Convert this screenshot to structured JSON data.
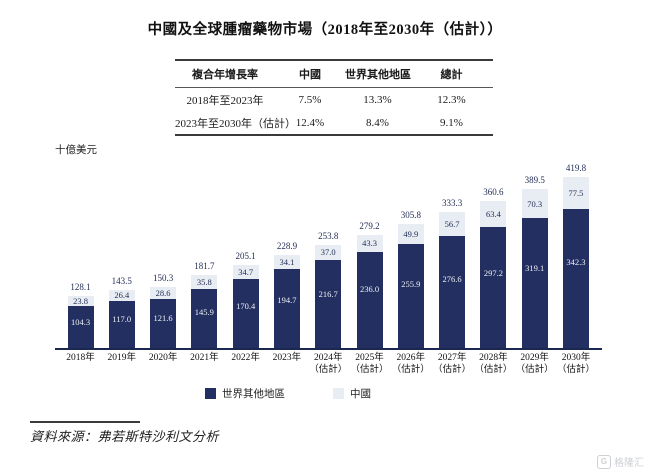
{
  "title": "中國及全球腫瘤藥物市場（2018年至2030年（估計））",
  "cagr_table": {
    "headers": [
      "複合年增長率",
      "中國",
      "世界其他地區",
      "總計"
    ],
    "rows": [
      {
        "label": "2018年至2023年",
        "values": [
          "7.5%",
          "13.3%",
          "12.3%"
        ]
      },
      {
        "label": "2023年至2030年（估計）",
        "values": [
          "12.4%",
          "8.4%",
          "9.1%"
        ]
      }
    ]
  },
  "y_axis_label": "十億美元",
  "chart_data": {
    "type": "bar",
    "stacked": true,
    "unit": "十億美元",
    "categories": [
      {
        "year": "2018年",
        "note": ""
      },
      {
        "year": "2019年",
        "note": ""
      },
      {
        "year": "2020年",
        "note": ""
      },
      {
        "year": "2021年",
        "note": ""
      },
      {
        "year": "2022年",
        "note": ""
      },
      {
        "year": "2023年",
        "note": ""
      },
      {
        "year": "2024年",
        "note": "（估計）"
      },
      {
        "year": "2025年",
        "note": "（估計）"
      },
      {
        "year": "2026年",
        "note": "（估計）"
      },
      {
        "year": "2027年",
        "note": "（估計）"
      },
      {
        "year": "2028年",
        "note": "（估計）"
      },
      {
        "year": "2029年",
        "note": "（估計）"
      },
      {
        "year": "2030年",
        "note": "（估計）"
      }
    ],
    "series": [
      {
        "name": "世界其他地區",
        "color": "#232F60",
        "values": [
          104.3,
          117.0,
          121.6,
          145.9,
          170.4,
          194.7,
          216.7,
          236.0,
          255.9,
          276.6,
          297.2,
          319.1,
          342.3
        ]
      },
      {
        "name": "中國",
        "color": "#E8EDF4",
        "values": [
          23.8,
          26.4,
          28.6,
          35.8,
          34.7,
          34.1,
          37.0,
          43.3,
          49.9,
          56.7,
          63.4,
          70.3,
          77.5
        ]
      }
    ],
    "totals": [
      128.1,
      143.5,
      150.3,
      181.7,
      205.1,
      228.9,
      253.8,
      279.2,
      305.8,
      333.3,
      360.6,
      389.5,
      419.8
    ],
    "ylim": [
      0,
      420
    ],
    "grid": false,
    "legend_position": "bottom"
  },
  "legend": [
    {
      "label": "世界其他地區",
      "color": "#232F60"
    },
    {
      "label": "中國",
      "color": "#E8EDF4"
    }
  ],
  "source": "資料來源：弗若斯特沙利文分析",
  "watermark": {
    "logo": "G",
    "text": "格隆汇"
  },
  "colors": {
    "bar_dark": "#232F60",
    "bar_light": "#E8EDF4",
    "axis": "#1B2750",
    "label_dark_text": "#1F2A52",
    "label_light_text": "#EEF1F6"
  }
}
